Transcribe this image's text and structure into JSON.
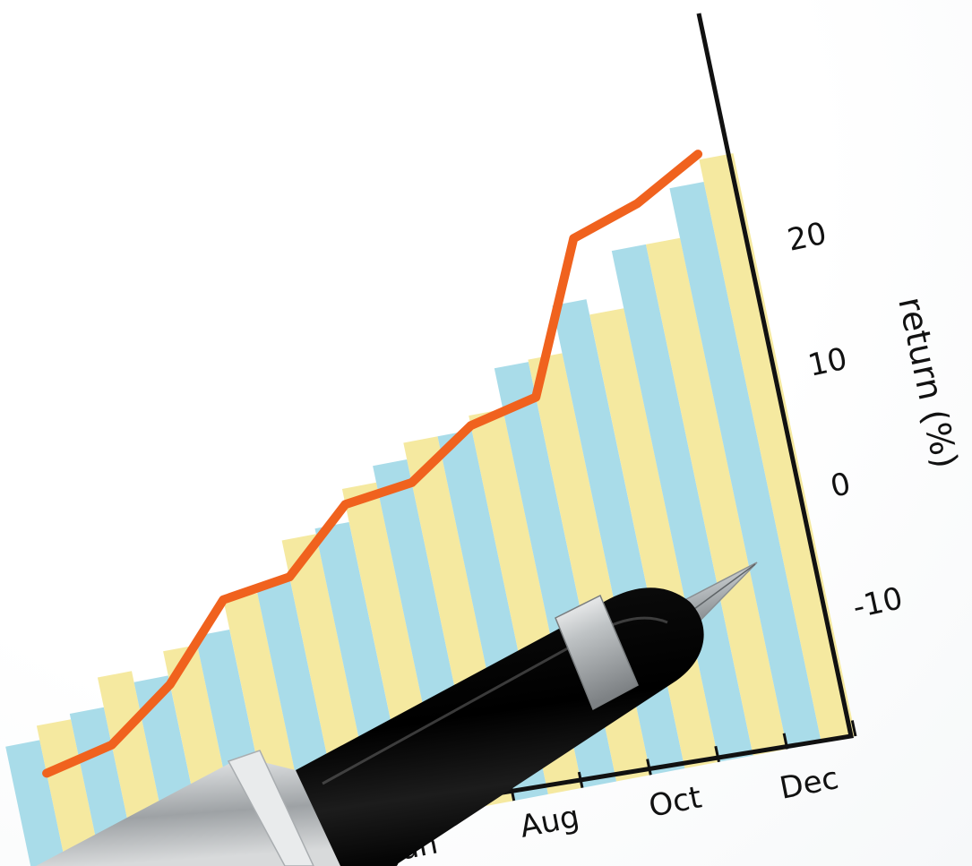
{
  "chart_data": {
    "type": "bar",
    "ylabel": "return (%)",
    "ylim": [
      -20,
      28
    ],
    "x_tick_labels": [
      "Jun",
      "Aug",
      "Oct",
      "Dec"
    ],
    "y_ticks": [
      20,
      10,
      0,
      -10
    ],
    "y_tick_labels": [
      "20",
      "10",
      "0",
      "-10"
    ],
    "grid": false,
    "legend": "none",
    "bar_pairs": [
      {
        "blue": -13.9,
        "yellow": -12.6
      },
      {
        "blue": -12.1,
        "yellow": -9.4
      },
      {
        "blue": -10.4,
        "yellow": -8.2
      },
      {
        "blue": -7.4,
        "yellow": -4.7
      },
      {
        "blue": -3.9,
        "yellow": -0.5
      },
      {
        "blue": 0.0,
        "yellow": 3.0
      },
      {
        "blue": 4.5,
        "yellow": 6.0
      },
      {
        "blue": 6.0,
        "yellow": 7.3
      },
      {
        "blue": 11.0,
        "yellow": 11.2
      },
      {
        "blue": 15.5,
        "yellow": 14.1
      },
      {
        "blue": 19.3,
        "yellow": 19.3
      },
      {
        "blue": 23.8,
        "yellow": 25.8
      }
    ],
    "line_values": [
      -16.9,
      -15.5,
      -11.2,
      -4.7,
      -3.8,
      1.6,
      2.4,
      6.4,
      7.8,
      21.0,
      23.0,
      26.3
    ],
    "colors": {
      "blue_bars": "#a9dce9",
      "yellow_bars": "#f5e9a0",
      "line": "#f0621e",
      "axis": "#111111"
    }
  },
  "pen": {
    "icon": "fountain-pen-icon",
    "colors": {
      "barrel": "#0b0b0b",
      "cap": "#c9ccce",
      "ring": "#dcdfe0",
      "nib": "#b9bec1"
    }
  }
}
